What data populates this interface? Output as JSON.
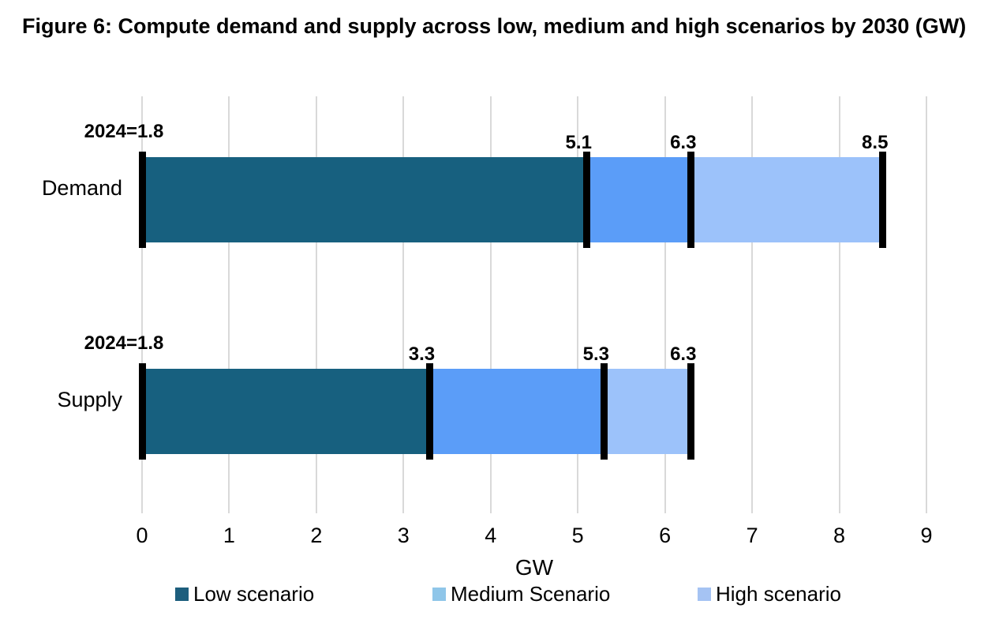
{
  "title": "Figure 6: Compute demand and supply across low, medium and high scenarios by 2030 (GW)",
  "chart_data": {
    "type": "bar",
    "orientation": "horizontal_stacked",
    "title": "Figure 6: Compute demand and supply across low, medium and high scenarios by 2030 (GW)",
    "categories": [
      "Demand",
      "Supply"
    ],
    "series": [
      {
        "name": "Low scenario",
        "segment_values": [
          5.1,
          3.3
        ],
        "cumulative_ends": [
          5.1,
          3.3
        ],
        "color": "#17607F",
        "legend_color": "#1D5E7D"
      },
      {
        "name": "Medium Scenario",
        "segment_values": [
          1.2,
          2.0
        ],
        "cumulative_ends": [
          6.3,
          5.3
        ],
        "color": "#5B9DF8",
        "legend_color": "#8FC6E9"
      },
      {
        "name": "High scenario",
        "segment_values": [
          2.2,
          1.0
        ],
        "cumulative_ends": [
          8.5,
          6.3
        ],
        "color": "#9CC2FA",
        "legend_color": "#A5C3F3"
      }
    ],
    "value_labels": [
      [
        "5.1",
        "6.3",
        "8.5"
      ],
      [
        "3.3",
        "5.3",
        "6.3"
      ]
    ],
    "baseline_annotations": [
      "2024=1.8",
      "2024=1.8"
    ],
    "xlabel": "GW",
    "x_ticks": [
      "0",
      "1",
      "2",
      "3",
      "4",
      "5",
      "6",
      "7",
      "8",
      "9"
    ],
    "xlim": [
      0,
      9
    ],
    "grid": "vertical",
    "gridline_color": "#D9D9D9",
    "boundary_marker_color": "#000000",
    "legend_position": "bottom"
  }
}
